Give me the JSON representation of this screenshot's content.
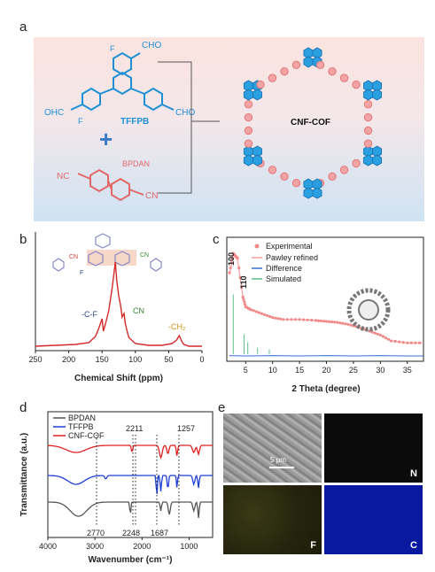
{
  "panel_labels": {
    "a": "a",
    "b": "b",
    "c": "c",
    "d": "d",
    "e": "e"
  },
  "panel_a": {
    "tffpb_label": "TFFPB",
    "bpdan_label": "BPDAN",
    "cof_label": "CNF-COF",
    "aldehyde": "CHO",
    "aldehyde_left": "OHC",
    "fluoro": "F",
    "nitrile": "NC",
    "nitrile_right": "CN",
    "plus": "+"
  },
  "panel_b": {
    "annotation_cf": "-C-F",
    "annotation_cn": "CN",
    "annotation_ch2": "-CH₂",
    "struct_cn": "CN",
    "struct_f": "F",
    "colors": {
      "line": "#d42a2a",
      "cn_label": "#3a8a3a",
      "ch2_label": "#c8960a",
      "cf_label": "#2a4a8a"
    }
  },
  "panel_c": {
    "legend": [
      "Experimental",
      "Pawley refined",
      "Difference",
      "Simulated"
    ],
    "peak_labels": [
      "100",
      "110"
    ],
    "colors": {
      "experimental": "#f28a8a",
      "pawley": "#f4a0a0",
      "difference": "#3a6fd6",
      "simulated": "#5fc08a"
    }
  },
  "panel_d": {
    "legend": [
      "BPDAN",
      "TFFPB",
      "CNF-COF"
    ],
    "peak_top": [
      "2211",
      "1257"
    ],
    "peak_bottom": [
      "2770",
      "2248",
      "1687"
    ],
    "colors": {
      "bpdan": "#555555",
      "tffpb": "#1f3fd6",
      "cof": "#e02020"
    }
  },
  "panel_e": {
    "scale_bar": "5 μm",
    "labels": [
      "N",
      "F",
      "C"
    ],
    "colors": {
      "n_map": "#0b0b0b",
      "f_map": "#2b2b12",
      "c_map": "#0a1aa0"
    }
  },
  "chart_data": [
    {
      "type": "line",
      "panel": "b",
      "title": "",
      "xlabel": "Chemical Shift (ppm)",
      "ylabel": "",
      "xlim": [
        250,
        0
      ],
      "xticks": [
        250,
        200,
        150,
        100,
        50,
        0
      ],
      "series": [
        {
          "x": [
            250,
            220,
            190,
            170,
            160,
            155,
            150,
            148,
            145,
            140,
            135,
            130,
            128,
            125,
            122,
            120,
            117,
            115,
            110,
            100,
            80,
            60,
            45,
            38,
            34,
            30,
            27,
            20,
            0
          ],
          "y": [
            0.05,
            0.06,
            0.07,
            0.09,
            0.16,
            0.25,
            0.36,
            0.22,
            0.3,
            0.45,
            0.7,
            1.0,
            0.8,
            0.62,
            0.5,
            0.38,
            0.42,
            0.3,
            0.15,
            0.08,
            0.06,
            0.06,
            0.08,
            0.12,
            0.17,
            0.1,
            0.07,
            0.05,
            0.05
          ]
        }
      ],
      "annotations": [
        "-C-F",
        "CN",
        "-CH₂"
      ]
    },
    {
      "type": "line",
      "panel": "c",
      "title": "",
      "xlabel": "2 Theta (degree)",
      "ylabel": "",
      "xlim": [
        1.5,
        38
      ],
      "xticks": [
        5,
        10,
        15,
        20,
        25,
        30,
        35
      ],
      "series": [
        {
          "name": "Experimental",
          "x": [
            2,
            2.7,
            3.5,
            4.5,
            5,
            6,
            8,
            10,
            12,
            15,
            18,
            20,
            22,
            24,
            26,
            28,
            30,
            32,
            35,
            38
          ],
          "y": [
            0.8,
            1.0,
            0.95,
            0.55,
            0.45,
            0.42,
            0.38,
            0.34,
            0.32,
            0.32,
            0.31,
            0.3,
            0.29,
            0.27,
            0.24,
            0.2,
            0.16,
            0.1,
            0.08,
            0.08
          ]
        },
        {
          "name": "Pawley refined",
          "x": [
            2,
            2.7,
            3.5,
            4.5,
            5,
            6,
            8,
            10,
            12,
            15,
            18,
            20,
            22,
            24,
            26,
            28,
            30,
            32,
            35,
            38
          ],
          "y": [
            0.78,
            0.98,
            0.93,
            0.55,
            0.45,
            0.42,
            0.38,
            0.34,
            0.32,
            0.32,
            0.31,
            0.3,
            0.29,
            0.27,
            0.24,
            0.2,
            0.16,
            0.1,
            0.08,
            0.08
          ]
        },
        {
          "name": "Difference",
          "x": [
            2,
            5,
            10,
            15,
            20,
            25,
            30,
            35,
            38
          ],
          "y": [
            0.01,
            0.0,
            0.01,
            0.0,
            0.01,
            0.0,
            0.01,
            0.0,
            0.0
          ]
        },
        {
          "name": "Simulated",
          "x": [
            2.7,
            4.7,
            5.4,
            7.2,
            9.4
          ],
          "y": [
            0.75,
            0.25,
            0.15,
            0.08,
            0.06
          ]
        }
      ],
      "peak_labels": [
        "100",
        "110"
      ]
    },
    {
      "type": "line",
      "panel": "d",
      "title": "",
      "xlabel": "Wavenumber (cm⁻¹)",
      "ylabel": "Transmittance (a.u.)",
      "xlim": [
        4000,
        500
      ],
      "xticks": [
        4000,
        3000,
        2000,
        1000
      ],
      "series": [
        {
          "name": "BPDAN"
        },
        {
          "name": "TFFPB"
        },
        {
          "name": "CNF-COF"
        }
      ],
      "peak_labels": [
        "2211",
        "1257",
        "2770",
        "2248",
        "1687"
      ]
    }
  ]
}
